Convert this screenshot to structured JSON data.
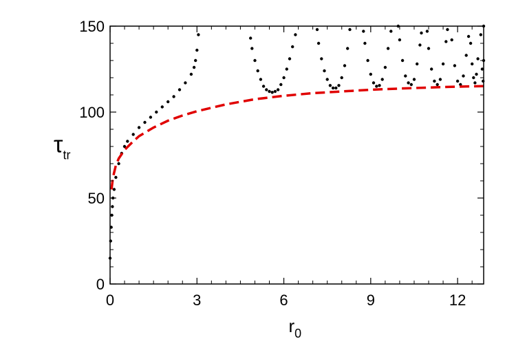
{
  "chart_data": {
    "type": "scatter",
    "xlabel": {
      "main": "r",
      "sub": "0"
    },
    "ylabel": {
      "main": "τ",
      "sub": "tr"
    },
    "xlim": [
      0,
      12.9
    ],
    "ylim": [
      0,
      150
    ],
    "x_ticks": [
      0,
      3,
      6,
      9,
      12
    ],
    "y_ticks": [
      0,
      50,
      100,
      150
    ],
    "x_tick_labels": [
      "0",
      "3",
      "6",
      "9",
      "12"
    ],
    "y_tick_labels": [
      "0",
      "50",
      "100",
      "150"
    ],
    "grid": false,
    "series": [
      {
        "kind": "scatter",
        "color": "#000000",
        "points": [
          [
            0.0,
            15
          ],
          [
            0.02,
            25
          ],
          [
            0.04,
            33
          ],
          [
            0.06,
            40
          ],
          [
            0.08,
            45
          ],
          [
            0.1,
            50
          ],
          [
            0.14,
            55
          ],
          [
            0.2,
            62
          ],
          [
            0.3,
            70
          ],
          [
            0.4,
            76
          ],
          [
            0.5,
            80
          ],
          [
            0.6,
            83
          ],
          [
            0.8,
            87
          ],
          [
            1.0,
            91
          ],
          [
            1.2,
            94
          ],
          [
            1.4,
            97
          ],
          [
            1.6,
            100
          ],
          [
            1.8,
            103
          ],
          [
            2.0,
            106
          ],
          [
            2.2,
            109
          ],
          [
            2.4,
            113
          ],
          [
            2.6,
            117
          ],
          [
            2.8,
            122
          ],
          [
            2.9,
            126
          ],
          [
            2.95,
            130
          ],
          [
            3.0,
            136
          ],
          [
            3.05,
            145
          ],
          [
            4.85,
            143
          ],
          [
            4.9,
            137
          ],
          [
            5.0,
            130
          ],
          [
            5.1,
            124
          ],
          [
            5.2,
            119
          ],
          [
            5.3,
            115
          ],
          [
            5.4,
            113
          ],
          [
            5.5,
            112
          ],
          [
            5.6,
            111.5
          ],
          [
            5.7,
            112
          ],
          [
            5.8,
            113
          ],
          [
            5.9,
            116
          ],
          [
            6.0,
            120
          ],
          [
            6.1,
            125
          ],
          [
            6.2,
            131
          ],
          [
            6.3,
            138
          ],
          [
            6.4,
            145
          ],
          [
            7.15,
            148
          ],
          [
            7.2,
            140
          ],
          [
            7.3,
            131
          ],
          [
            7.4,
            124
          ],
          [
            7.5,
            119
          ],
          [
            7.6,
            115.5
          ],
          [
            7.7,
            114
          ],
          [
            7.8,
            114
          ],
          [
            7.9,
            115.5
          ],
          [
            8.0,
            120
          ],
          [
            8.1,
            127
          ],
          [
            8.2,
            137
          ],
          [
            8.28,
            148
          ],
          [
            8.75,
            147
          ],
          [
            8.8,
            140
          ],
          [
            8.9,
            130
          ],
          [
            9.0,
            122
          ],
          [
            9.1,
            117
          ],
          [
            9.2,
            115
          ],
          [
            9.3,
            115.5
          ],
          [
            9.4,
            119
          ],
          [
            9.5,
            126
          ],
          [
            9.6,
            137
          ],
          [
            9.7,
            147
          ],
          [
            9.95,
            150
          ],
          [
            10.0,
            142
          ],
          [
            10.1,
            130
          ],
          [
            10.2,
            121
          ],
          [
            10.3,
            117
          ],
          [
            10.4,
            116
          ],
          [
            10.5,
            119
          ],
          [
            10.6,
            128
          ],
          [
            10.7,
            139
          ],
          [
            10.75,
            146
          ],
          [
            10.95,
            147
          ],
          [
            11.0,
            137
          ],
          [
            11.1,
            125
          ],
          [
            11.2,
            118
          ],
          [
            11.3,
            116
          ],
          [
            11.4,
            119
          ],
          [
            11.5,
            128
          ],
          [
            11.6,
            141
          ],
          [
            11.65,
            148
          ],
          [
            11.8,
            142
          ],
          [
            11.9,
            127
          ],
          [
            12.0,
            118
          ],
          [
            12.1,
            116
          ],
          [
            12.2,
            121
          ],
          [
            12.3,
            133
          ],
          [
            12.38,
            144
          ],
          [
            12.45,
            140
          ],
          [
            12.5,
            128
          ],
          [
            12.55,
            120
          ],
          [
            12.6,
            117
          ],
          [
            12.65,
            122
          ],
          [
            12.7,
            131
          ],
          [
            12.8,
            145
          ],
          [
            12.85,
            125
          ],
          [
            12.88,
            118
          ],
          [
            12.9,
            130
          ],
          [
            12.9,
            150
          ]
        ]
      },
      {
        "kind": "dashed-line",
        "color": "#e00000",
        "x": [
          0.05,
          0.1,
          0.2,
          0.3,
          0.5,
          0.8,
          1.0,
          1.5,
          2.0,
          2.5,
          3.0,
          3.5,
          4.0,
          5.0,
          6.0,
          7.0,
          8.0,
          9.0,
          10.0,
          11.0,
          12.0,
          12.9
        ],
        "y": [
          55,
          62,
          69,
          73,
          78,
          83,
          86,
          91,
          95,
          98,
          100.5,
          102.5,
          104.5,
          107.5,
          109.5,
          111,
          112,
          113,
          113.7,
          114.3,
          114.8,
          115.1
        ]
      }
    ]
  }
}
